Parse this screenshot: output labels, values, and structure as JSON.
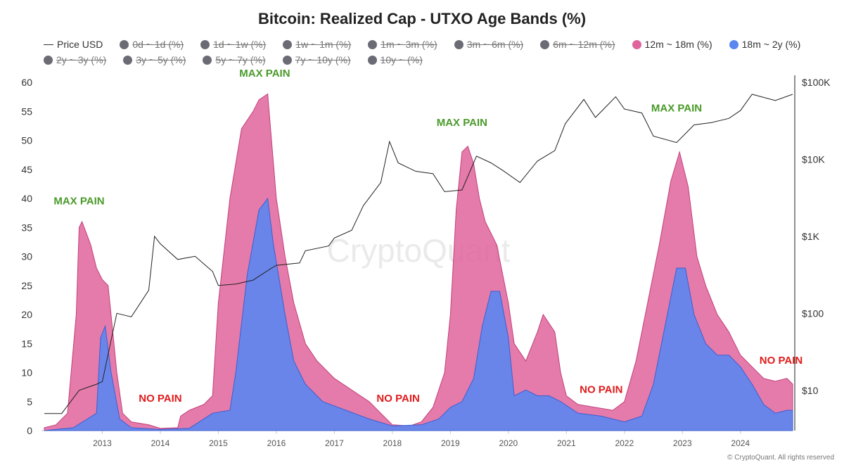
{
  "chart_data": {
    "type": "area",
    "title": "Bitcoin: Realized Cap - UTXO Age Bands (%)",
    "legend": [
      {
        "name": "Price USD",
        "active": true,
        "kind": "line",
        "color": "#222222"
      },
      {
        "name": "0d ~ 1d (%)",
        "active": false
      },
      {
        "name": "1d ~ 1w (%)",
        "active": false
      },
      {
        "name": "1w ~ 1m (%)",
        "active": false
      },
      {
        "name": "1m ~ 3m (%)",
        "active": false
      },
      {
        "name": "3m ~ 6m (%)",
        "active": false
      },
      {
        "name": "6m ~ 12m (%)",
        "active": false
      },
      {
        "name": "12m ~ 18m (%)",
        "active": true,
        "color": "#e0649b"
      },
      {
        "name": "18m ~ 2y (%)",
        "active": true,
        "color": "#5b86f0"
      },
      {
        "name": "2y ~ 3y (%)",
        "active": false
      },
      {
        "name": "3y ~ 5y (%)",
        "active": false
      },
      {
        "name": "5y ~ 7y (%)",
        "active": false
      },
      {
        "name": "7y ~ 10y (%)",
        "active": false
      },
      {
        "name": "10y ~ (%)",
        "active": false
      }
    ],
    "legend_placement": "top",
    "xlim": [
      2012.0,
      2024.9
    ],
    "x_ticks": [
      "2013",
      "2014",
      "2015",
      "2016",
      "2017",
      "2018",
      "2019",
      "2020",
      "2021",
      "2022",
      "2023",
      "2024"
    ],
    "ylim": [
      0,
      60
    ],
    "y_ticks": [
      "0",
      "5",
      "10",
      "15",
      "20",
      "25",
      "30",
      "35",
      "40",
      "45",
      "50",
      "55",
      "60"
    ],
    "y2_scale": "log",
    "y2lim": [
      3,
      100000
    ],
    "y2_ticks": [
      {
        "v": 10,
        "label": "$10"
      },
      {
        "v": 100,
        "label": "$100"
      },
      {
        "v": 1000,
        "label": "$1K"
      },
      {
        "v": 10000,
        "label": "$10K"
      },
      {
        "v": 100000,
        "label": "$100K"
      }
    ],
    "series": [
      {
        "name": "12m ~ 18m (%)",
        "color": "#e0649b",
        "points": [
          [
            2012.0,
            0.5
          ],
          [
            2012.2,
            1
          ],
          [
            2012.4,
            3
          ],
          [
            2012.55,
            20
          ],
          [
            2012.6,
            35
          ],
          [
            2012.65,
            36
          ],
          [
            2012.8,
            32
          ],
          [
            2012.9,
            28
          ],
          [
            2013.0,
            26
          ],
          [
            2013.1,
            25
          ],
          [
            2013.15,
            20
          ],
          [
            2013.25,
            10
          ],
          [
            2013.35,
            3
          ],
          [
            2013.5,
            1.5
          ],
          [
            2013.8,
            1
          ],
          [
            2014.0,
            0.4
          ],
          [
            2014.3,
            0.5
          ],
          [
            2014.35,
            2.5
          ],
          [
            2014.5,
            3.5
          ],
          [
            2014.75,
            4.5
          ],
          [
            2014.9,
            6
          ],
          [
            2015.0,
            22
          ],
          [
            2015.2,
            40
          ],
          [
            2015.4,
            52
          ],
          [
            2015.6,
            55
          ],
          [
            2015.7,
            57
          ],
          [
            2015.85,
            58
          ],
          [
            2016.0,
            40
          ],
          [
            2016.15,
            30
          ],
          [
            2016.3,
            22
          ],
          [
            2016.5,
            15
          ],
          [
            2016.7,
            12
          ],
          [
            2017.0,
            9
          ],
          [
            2017.3,
            7
          ],
          [
            2017.6,
            5
          ],
          [
            2017.8,
            3
          ],
          [
            2018.0,
            1
          ],
          [
            2018.3,
            0.8
          ],
          [
            2018.5,
            1.5
          ],
          [
            2018.7,
            4
          ],
          [
            2018.9,
            10
          ],
          [
            2019.0,
            20
          ],
          [
            2019.1,
            38
          ],
          [
            2019.2,
            48
          ],
          [
            2019.3,
            49
          ],
          [
            2019.4,
            46
          ],
          [
            2019.5,
            40
          ],
          [
            2019.6,
            36
          ],
          [
            2019.8,
            32
          ],
          [
            2020.0,
            22
          ],
          [
            2020.1,
            15
          ],
          [
            2020.3,
            12
          ],
          [
            2020.5,
            17
          ],
          [
            2020.6,
            20
          ],
          [
            2020.8,
            17
          ],
          [
            2020.9,
            10
          ],
          [
            2021.0,
            6
          ],
          [
            2021.2,
            4.5
          ],
          [
            2021.5,
            4
          ],
          [
            2021.8,
            3.5
          ],
          [
            2022.0,
            5
          ],
          [
            2022.2,
            12
          ],
          [
            2022.4,
            22
          ],
          [
            2022.6,
            32
          ],
          [
            2022.8,
            43
          ],
          [
            2022.95,
            48
          ],
          [
            2023.1,
            42
          ],
          [
            2023.25,
            30
          ],
          [
            2023.4,
            25
          ],
          [
            2023.6,
            20
          ],
          [
            2023.8,
            17
          ],
          [
            2024.0,
            13
          ],
          [
            2024.2,
            11
          ],
          [
            2024.4,
            9
          ],
          [
            2024.6,
            8.5
          ],
          [
            2024.8,
            9
          ],
          [
            2024.9,
            8
          ]
        ]
      },
      {
        "name": "18m ~ 2y (%)",
        "color": "#5b86f0",
        "points": [
          [
            2012.0,
            0
          ],
          [
            2012.5,
            0.5
          ],
          [
            2012.9,
            3
          ],
          [
            2012.97,
            16
          ],
          [
            2013.05,
            18
          ],
          [
            2013.15,
            10
          ],
          [
            2013.3,
            2
          ],
          [
            2013.5,
            0.5
          ],
          [
            2014.0,
            0.2
          ],
          [
            2014.5,
            0.4
          ],
          [
            2014.9,
            3
          ],
          [
            2015.2,
            3.5
          ],
          [
            2015.3,
            10
          ],
          [
            2015.5,
            27
          ],
          [
            2015.7,
            38
          ],
          [
            2015.85,
            40
          ],
          [
            2015.95,
            32
          ],
          [
            2016.15,
            20
          ],
          [
            2016.3,
            12
          ],
          [
            2016.5,
            8
          ],
          [
            2016.8,
            5
          ],
          [
            2017.2,
            3.5
          ],
          [
            2017.6,
            2
          ],
          [
            2018.0,
            0.8
          ],
          [
            2018.5,
            1
          ],
          [
            2018.8,
            2
          ],
          [
            2019.0,
            4
          ],
          [
            2019.2,
            5
          ],
          [
            2019.4,
            9
          ],
          [
            2019.55,
            18
          ],
          [
            2019.7,
            24
          ],
          [
            2019.85,
            24
          ],
          [
            2020.0,
            16
          ],
          [
            2020.1,
            6
          ],
          [
            2020.3,
            7
          ],
          [
            2020.5,
            6
          ],
          [
            2020.7,
            6
          ],
          [
            2020.9,
            5
          ],
          [
            2021.2,
            3
          ],
          [
            2021.6,
            2.5
          ],
          [
            2022.0,
            1.5
          ],
          [
            2022.3,
            2.5
          ],
          [
            2022.5,
            8
          ],
          [
            2022.7,
            18
          ],
          [
            2022.9,
            28
          ],
          [
            2023.05,
            28
          ],
          [
            2023.2,
            20
          ],
          [
            2023.4,
            15
          ],
          [
            2023.6,
            13
          ],
          [
            2023.8,
            13
          ],
          [
            2024.0,
            11
          ],
          [
            2024.2,
            8
          ],
          [
            2024.4,
            4.5
          ],
          [
            2024.6,
            3
          ],
          [
            2024.8,
            3.5
          ],
          [
            2024.9,
            3.5
          ]
        ]
      },
      {
        "name": "Price USD",
        "axis": "right",
        "color": "#222222",
        "points": [
          [
            2012.0,
            5
          ],
          [
            2012.3,
            5
          ],
          [
            2012.6,
            10
          ],
          [
            2012.9,
            12
          ],
          [
            2013.0,
            13
          ],
          [
            2013.25,
            100
          ],
          [
            2013.5,
            90
          ],
          [
            2013.8,
            200
          ],
          [
            2013.9,
            1000
          ],
          [
            2014.0,
            800
          ],
          [
            2014.3,
            500
          ],
          [
            2014.6,
            550
          ],
          [
            2014.9,
            350
          ],
          [
            2015.0,
            230
          ],
          [
            2015.3,
            240
          ],
          [
            2015.6,
            270
          ],
          [
            2015.9,
            380
          ],
          [
            2016.0,
            420
          ],
          [
            2016.4,
            450
          ],
          [
            2016.5,
            650
          ],
          [
            2016.9,
            750
          ],
          [
            2017.0,
            950
          ],
          [
            2017.3,
            1200
          ],
          [
            2017.5,
            2500
          ],
          [
            2017.8,
            5000
          ],
          [
            2017.95,
            17000
          ],
          [
            2018.1,
            9000
          ],
          [
            2018.4,
            7000
          ],
          [
            2018.7,
            6500
          ],
          [
            2018.9,
            3800
          ],
          [
            2019.2,
            4000
          ],
          [
            2019.45,
            11000
          ],
          [
            2019.7,
            9000
          ],
          [
            2019.9,
            7200
          ],
          [
            2020.2,
            5000
          ],
          [
            2020.5,
            9500
          ],
          [
            2020.8,
            13000
          ],
          [
            2020.98,
            29000
          ],
          [
            2021.3,
            60000
          ],
          [
            2021.5,
            35000
          ],
          [
            2021.85,
            65000
          ],
          [
            2022.0,
            45000
          ],
          [
            2022.3,
            40000
          ],
          [
            2022.5,
            20000
          ],
          [
            2022.9,
            16500
          ],
          [
            2023.2,
            28000
          ],
          [
            2023.5,
            30000
          ],
          [
            2023.8,
            34000
          ],
          [
            2024.0,
            43000
          ],
          [
            2024.2,
            70000
          ],
          [
            2024.6,
            58000
          ],
          [
            2024.9,
            70000
          ]
        ]
      }
    ],
    "annotations": [
      {
        "text": "MAX PAIN",
        "x": 2012.6,
        "y": 39,
        "color": "#4a9a2a"
      },
      {
        "text": "MAX PAIN",
        "x": 2015.8,
        "y": 61,
        "color": "#4a9a2a"
      },
      {
        "text": "MAX PAIN",
        "x": 2019.2,
        "y": 52.5,
        "color": "#4a9a2a"
      },
      {
        "text": "MAX PAIN",
        "x": 2022.9,
        "y": 55,
        "color": "#4a9a2a"
      },
      {
        "text": "NO PAIN",
        "x": 2014.0,
        "y": 5,
        "color": "#e01b1b"
      },
      {
        "text": "NO PAIN",
        "x": 2018.1,
        "y": 5,
        "color": "#e01b1b"
      },
      {
        "text": "NO PAIN",
        "x": 2021.6,
        "y": 6.5,
        "color": "#e01b1b"
      },
      {
        "text": "NO PAIN",
        "x": 2024.7,
        "y": 11.5,
        "color": "#e01b1b"
      }
    ],
    "watermark": "CryptoQuant",
    "copyright": "© CryptoQuant. All rights reserved"
  }
}
